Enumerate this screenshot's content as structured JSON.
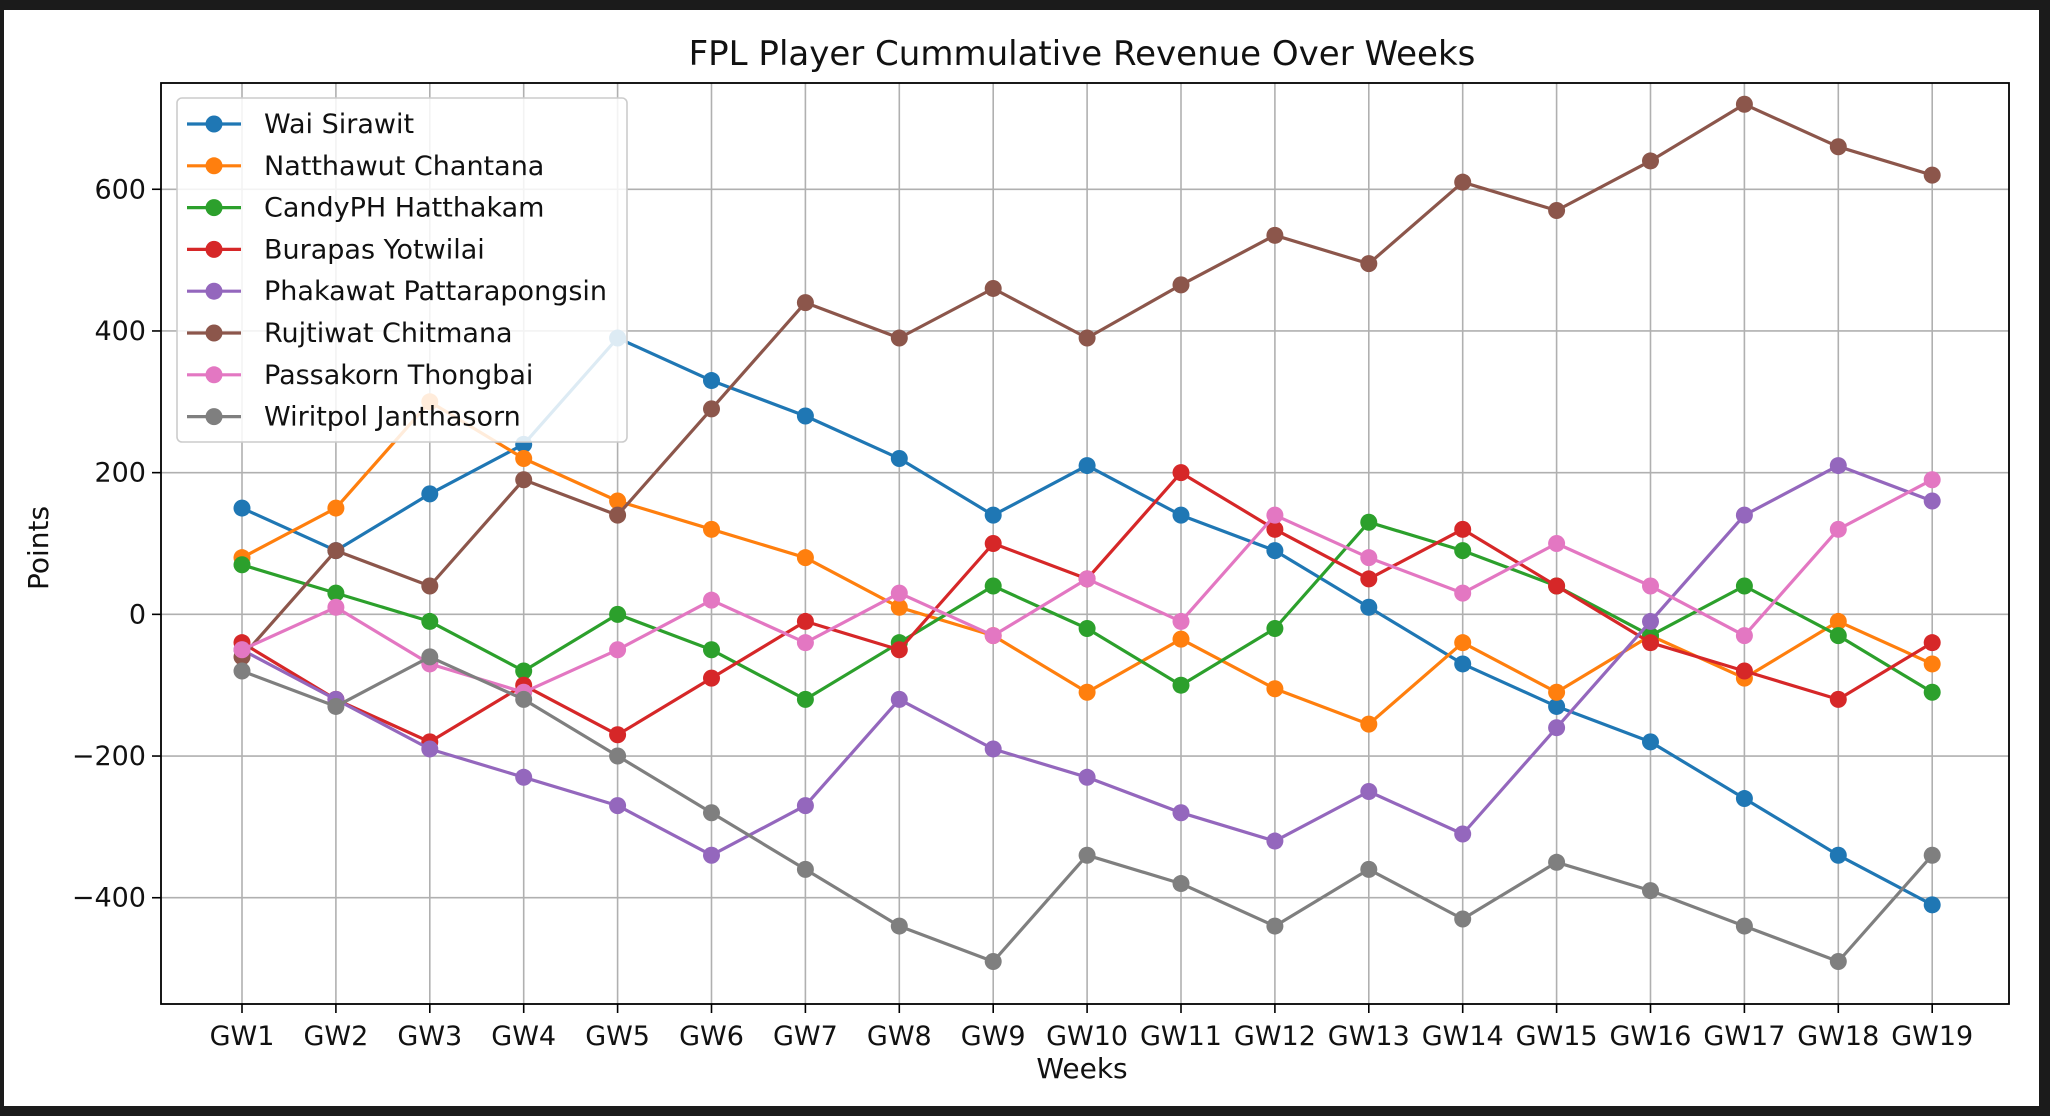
{
  "chart_data": {
    "type": "line",
    "title": "FPL Player Cummulative Revenue Over Weeks",
    "xlabel": "Weeks",
    "ylabel": "Points",
    "categories": [
      "GW1",
      "GW2",
      "GW3",
      "GW4",
      "GW5",
      "GW6",
      "GW7",
      "GW8",
      "GW9",
      "GW10",
      "GW11",
      "GW12",
      "GW13",
      "GW14",
      "GW15",
      "GW16",
      "GW17",
      "GW18",
      "GW19"
    ],
    "ylim": [
      -550,
      750
    ],
    "yticks": [
      -400,
      -200,
      0,
      200,
      400,
      600
    ],
    "ytick_labels": [
      "−400",
      "−200",
      "0",
      "200",
      "400",
      "600"
    ],
    "grid": true,
    "legend_position": "upper-left",
    "series": [
      {
        "name": "Wai Sirawit",
        "color": "#1f77b4",
        "values": [
          150,
          90,
          170,
          240,
          390,
          330,
          280,
          220,
          140,
          210,
          140,
          90,
          10,
          -70,
          -130,
          -180,
          -260,
          -340,
          -410
        ]
      },
      {
        "name": "Natthawut Chantana",
        "color": "#ff7f0e",
        "values": [
          80,
          150,
          300,
          220,
          160,
          120,
          80,
          10,
          -30,
          -110,
          -35,
          -105,
          -155,
          -40,
          -110,
          -30,
          -90,
          -10,
          -70
        ]
      },
      {
        "name": "CandyPH Hatthakam",
        "color": "#2ca02c",
        "values": [
          70,
          30,
          -10,
          -80,
          0,
          -50,
          -120,
          -40,
          40,
          -20,
          -100,
          -20,
          130,
          90,
          40,
          -30,
          40,
          -30,
          -110
        ]
      },
      {
        "name": "Burapas Yotwilai",
        "color": "#d62728",
        "values": [
          -40,
          -120,
          -180,
          -100,
          -170,
          -90,
          -10,
          -50,
          100,
          50,
          200,
          120,
          50,
          120,
          40,
          -40,
          -80,
          -120,
          -40
        ]
      },
      {
        "name": "Phakawat Pattarapongsin",
        "color": "#9467bd",
        "values": [
          -50,
          -120,
          -190,
          -230,
          -270,
          -340,
          -270,
          -120,
          -190,
          -230,
          -280,
          -320,
          -250,
          -310,
          -160,
          -10,
          140,
          210,
          160
        ]
      },
      {
        "name": "Rujtiwat Chitmana",
        "color": "#8c564b",
        "values": [
          -60,
          90,
          40,
          190,
          140,
          290,
          440,
          390,
          460,
          390,
          465,
          535,
          495,
          610,
          570,
          640,
          720,
          660,
          620
        ]
      },
      {
        "name": "Passakorn Thongbai",
        "color": "#e377c2",
        "values": [
          -50,
          10,
          -70,
          -110,
          -50,
          20,
          -40,
          30,
          -30,
          50,
          -10,
          140,
          80,
          30,
          100,
          40,
          -30,
          120,
          190
        ]
      },
      {
        "name": "Wiritpol Janthasorn",
        "color": "#7f7f7f",
        "values": [
          -80,
          -130,
          -60,
          -120,
          -200,
          -280,
          -360,
          -440,
          -490,
          -340,
          -380,
          -440,
          -360,
          -430,
          -350,
          -390,
          -440,
          -490,
          -340
        ]
      }
    ]
  }
}
